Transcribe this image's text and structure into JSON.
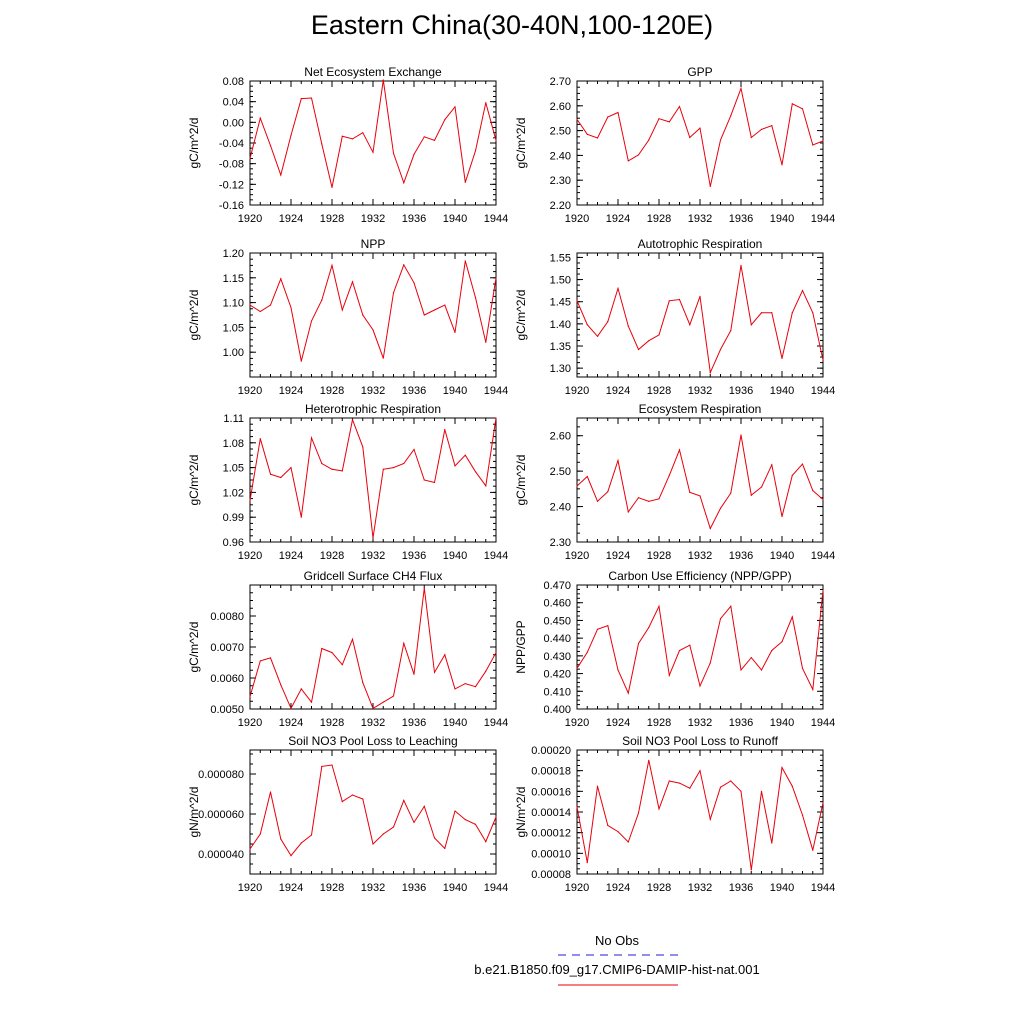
{
  "figure": {
    "title": "Eastern China(30-40N,100-120E)",
    "series_color": "#e8000b",
    "obs_color": "#1f1fd0"
  },
  "legend": {
    "obs_label": "No Obs",
    "model_label": "b.e21.B1850.f09_g17.CMIP6-DAMIP-hist-nat.001"
  },
  "chart_data": [
    {
      "type": "line",
      "title": "Net Ecosystem Exchange",
      "ylabel": "gC/m^2/d",
      "xlim": [
        1920,
        1944
      ],
      "ylim": [
        -0.16,
        0.08
      ],
      "yticks": [
        -0.16,
        -0.12,
        -0.08,
        -0.04,
        0.0,
        0.04,
        0.08
      ],
      "ytick_labels": [
        "-0.16",
        "-0.12",
        "-0.08",
        "-0.04",
        "0.00",
        "0.04",
        "0.08"
      ],
      "xticks": [
        1920,
        1924,
        1928,
        1932,
        1936,
        1940,
        1944
      ],
      "x": [
        1920,
        1921,
        1922,
        1923,
        1924,
        1925,
        1926,
        1927,
        1928,
        1929,
        1930,
        1931,
        1932,
        1933,
        1934,
        1935,
        1936,
        1937,
        1938,
        1939,
        1940,
        1941,
        1942,
        1943,
        1944
      ],
      "values": [
        -0.07,
        0.008,
        -0.045,
        -0.102,
        -0.025,
        0.046,
        0.047,
        -0.042,
        -0.126,
        -0.027,
        -0.032,
        -0.02,
        -0.058,
        0.082,
        -0.06,
        -0.117,
        -0.062,
        -0.028,
        -0.035,
        0.005,
        0.03,
        -0.116,
        -0.055,
        0.038,
        -0.035
      ]
    },
    {
      "type": "line",
      "title": "GPP",
      "ylabel": "gC/m^2/d",
      "xlim": [
        1920,
        1944
      ],
      "ylim": [
        2.2,
        2.7
      ],
      "yticks": [
        2.2,
        2.3,
        2.4,
        2.5,
        2.6,
        2.7
      ],
      "ytick_labels": [
        "2.20",
        "2.30",
        "2.40",
        "2.50",
        "2.60",
        "2.70"
      ],
      "xticks": [
        1920,
        1924,
        1928,
        1932,
        1936,
        1940,
        1944
      ],
      "x": [
        1920,
        1921,
        1922,
        1923,
        1924,
        1925,
        1926,
        1927,
        1928,
        1929,
        1930,
        1931,
        1932,
        1933,
        1934,
        1935,
        1936,
        1937,
        1938,
        1939,
        1940,
        1941,
        1942,
        1943,
        1944
      ],
      "values": [
        2.545,
        2.485,
        2.47,
        2.555,
        2.573,
        2.378,
        2.402,
        2.462,
        2.548,
        2.535,
        2.597,
        2.472,
        2.51,
        2.275,
        2.462,
        2.56,
        2.67,
        2.472,
        2.505,
        2.52,
        2.362,
        2.608,
        2.588,
        2.442,
        2.458
      ]
    },
    {
      "type": "line",
      "title": "NPP",
      "ylabel": "gC/m^2/d",
      "xlim": [
        1920,
        1944
      ],
      "ylim": [
        0.95,
        1.2
      ],
      "yticks": [
        1.0,
        1.05,
        1.1,
        1.15,
        1.2
      ],
      "ytick_labels": [
        "1.00",
        "1.05",
        "1.10",
        "1.15",
        "1.20"
      ],
      "xticks": [
        1920,
        1924,
        1928,
        1932,
        1936,
        1940,
        1944
      ],
      "x": [
        1920,
        1921,
        1922,
        1923,
        1924,
        1925,
        1926,
        1927,
        1928,
        1929,
        1930,
        1931,
        1932,
        1933,
        1934,
        1935,
        1936,
        1937,
        1938,
        1939,
        1940,
        1941,
        1942,
        1943,
        1944
      ],
      "values": [
        1.095,
        1.082,
        1.095,
        1.148,
        1.09,
        0.982,
        1.063,
        1.105,
        1.175,
        1.085,
        1.142,
        1.075,
        1.045,
        0.988,
        1.12,
        1.176,
        1.14,
        1.075,
        1.085,
        1.095,
        1.04,
        1.184,
        1.11,
        1.02,
        1.15
      ]
    },
    {
      "type": "line",
      "title": "Autotrophic Respiration",
      "ylabel": "gC/m^2/d",
      "xlim": [
        1920,
        1944
      ],
      "ylim": [
        1.28,
        1.56
      ],
      "yticks": [
        1.3,
        1.35,
        1.4,
        1.45,
        1.5,
        1.55
      ],
      "ytick_labels": [
        "1.30",
        "1.35",
        "1.40",
        "1.45",
        "1.50",
        "1.55"
      ],
      "xticks": [
        1920,
        1924,
        1928,
        1932,
        1936,
        1940,
        1944
      ],
      "x": [
        1920,
        1921,
        1922,
        1923,
        1924,
        1925,
        1926,
        1927,
        1928,
        1929,
        1930,
        1931,
        1932,
        1933,
        1934,
        1935,
        1936,
        1937,
        1938,
        1939,
        1940,
        1941,
        1942,
        1943,
        1944
      ],
      "values": [
        1.452,
        1.398,
        1.372,
        1.405,
        1.48,
        1.395,
        1.342,
        1.362,
        1.375,
        1.452,
        1.455,
        1.398,
        1.462,
        1.29,
        1.342,
        1.385,
        1.532,
        1.398,
        1.425,
        1.425,
        1.322,
        1.425,
        1.475,
        1.425,
        1.318
      ]
    },
    {
      "type": "line",
      "title": "Heterotrophic Respiration",
      "ylabel": "gC/m^2/d",
      "xlim": [
        1920,
        1944
      ],
      "ylim": [
        0.96,
        1.11
      ],
      "yticks": [
        0.96,
        0.99,
        1.02,
        1.05,
        1.08,
        1.11
      ],
      "ytick_labels": [
        "0.96",
        "0.99",
        "1.02",
        "1.05",
        "1.08",
        "1.11"
      ],
      "xticks": [
        1920,
        1924,
        1928,
        1932,
        1936,
        1940,
        1944
      ],
      "x": [
        1920,
        1921,
        1922,
        1923,
        1924,
        1925,
        1926,
        1927,
        1928,
        1929,
        1930,
        1931,
        1932,
        1933,
        1934,
        1935,
        1936,
        1937,
        1938,
        1939,
        1940,
        1941,
        1942,
        1943,
        1944
      ],
      "values": [
        1.01,
        1.085,
        1.042,
        1.038,
        1.05,
        0.99,
        1.086,
        1.055,
        1.048,
        1.046,
        1.108,
        1.075,
        0.965,
        1.048,
        1.05,
        1.055,
        1.072,
        1.035,
        1.032,
        1.096,
        1.052,
        1.065,
        1.045,
        1.028,
        1.11
      ]
    },
    {
      "type": "line",
      "title": "Ecosystem Respiration",
      "ylabel": "gC/m^2/d",
      "xlim": [
        1920,
        1944
      ],
      "ylim": [
        2.3,
        2.65
      ],
      "yticks": [
        2.3,
        2.4,
        2.5,
        2.6
      ],
      "ytick_labels": [
        "2.30",
        "2.40",
        "2.50",
        "2.60"
      ],
      "xticks": [
        1920,
        1924,
        1928,
        1932,
        1936,
        1940,
        1944
      ],
      "x": [
        1920,
        1921,
        1922,
        1923,
        1924,
        1925,
        1926,
        1927,
        1928,
        1929,
        1930,
        1931,
        1932,
        1933,
        1934,
        1935,
        1936,
        1937,
        1938,
        1939,
        1940,
        1941,
        1942,
        1943,
        1944
      ],
      "values": [
        2.458,
        2.485,
        2.415,
        2.442,
        2.53,
        2.385,
        2.425,
        2.415,
        2.422,
        2.488,
        2.56,
        2.44,
        2.43,
        2.338,
        2.395,
        2.438,
        2.602,
        2.432,
        2.455,
        2.518,
        2.372,
        2.488,
        2.52,
        2.445,
        2.42
      ]
    },
    {
      "type": "line",
      "title": "Gridcell Surface CH4 Flux",
      "ylabel": "gC/m^2/d",
      "xlim": [
        1920,
        1944
      ],
      "ylim": [
        0.005,
        0.009
      ],
      "yticks": [
        0.005,
        0.006,
        0.007,
        0.008
      ],
      "ytick_labels": [
        "0.0050",
        "0.0060",
        "0.0070",
        "0.0080"
      ],
      "xticks": [
        1920,
        1924,
        1928,
        1932,
        1936,
        1940,
        1944
      ],
      "x": [
        1920,
        1921,
        1922,
        1923,
        1924,
        1925,
        1926,
        1927,
        1928,
        1929,
        1930,
        1931,
        1932,
        1933,
        1934,
        1935,
        1936,
        1937,
        1938,
        1939,
        1940,
        1941,
        1942,
        1943,
        1944
      ],
      "values": [
        0.0054,
        0.00655,
        0.00665,
        0.00578,
        0.00502,
        0.00565,
        0.00522,
        0.00695,
        0.00682,
        0.00643,
        0.00725,
        0.00585,
        0.00502,
        0.00522,
        0.00542,
        0.00712,
        0.00612,
        0.0089,
        0.00618,
        0.00675,
        0.00565,
        0.00582,
        0.00572,
        0.00622,
        0.00682
      ]
    },
    {
      "type": "line",
      "title": "Carbon Use Efficiency (NPP/GPP)",
      "ylabel": "NPP/GPP",
      "xlim": [
        1920,
        1944
      ],
      "ylim": [
        0.4,
        0.47
      ],
      "yticks": [
        0.4,
        0.41,
        0.42,
        0.43,
        0.44,
        0.45,
        0.46,
        0.47
      ],
      "ytick_labels": [
        "0.400",
        "0.410",
        "0.420",
        "0.430",
        "0.440",
        "0.450",
        "0.460",
        "0.470"
      ],
      "xticks": [
        1920,
        1924,
        1928,
        1932,
        1936,
        1940,
        1944
      ],
      "x": [
        1920,
        1921,
        1922,
        1923,
        1924,
        1925,
        1926,
        1927,
        1928,
        1929,
        1930,
        1931,
        1932,
        1933,
        1934,
        1935,
        1936,
        1937,
        1938,
        1939,
        1940,
        1941,
        1942,
        1943,
        1944
      ],
      "values": [
        0.423,
        0.432,
        0.445,
        0.447,
        0.422,
        0.409,
        0.437,
        0.446,
        0.458,
        0.419,
        0.433,
        0.436,
        0.413,
        0.426,
        0.451,
        0.458,
        0.422,
        0.429,
        0.422,
        0.433,
        0.438,
        0.452,
        0.423,
        0.411,
        0.467
      ]
    },
    {
      "type": "line",
      "title": "Soil NO3 Pool Loss to Leaching",
      "ylabel": "gN/m^2/d",
      "xlim": [
        1920,
        1944
      ],
      "ylim": [
        3e-05,
        9.2e-05
      ],
      "yticks": [
        4e-05,
        6e-05,
        8e-05
      ],
      "ytick_labels": [
        "0.000040",
        "0.000060",
        "0.000080"
      ],
      "xticks": [
        1920,
        1924,
        1928,
        1932,
        1936,
        1940,
        1944
      ],
      "x": [
        1920,
        1921,
        1922,
        1923,
        1924,
        1925,
        1926,
        1927,
        1928,
        1929,
        1930,
        1931,
        1932,
        1933,
        1934,
        1935,
        1936,
        1937,
        1938,
        1939,
        1940,
        1941,
        1942,
        1943,
        1944
      ],
      "values": [
        4.25e-05,
        5e-05,
        7.1e-05,
        4.75e-05,
        3.92e-05,
        4.55e-05,
        4.95e-05,
        8.38e-05,
        8.45e-05,
        6.62e-05,
        6.95e-05,
        6.75e-05,
        4.5e-05,
        5e-05,
        5.35e-05,
        6.68e-05,
        5.58e-05,
        6.38e-05,
        4.8e-05,
        4.28e-05,
        6.15e-05,
        5.72e-05,
        5.48e-05,
        4.62e-05,
        5.85e-05
      ]
    },
    {
      "type": "line",
      "title": "Soil NO3 Pool Loss to Runoff",
      "ylabel": "gN/m^2/d",
      "xlim": [
        1920,
        1944
      ],
      "ylim": [
        8e-05,
        0.0002
      ],
      "yticks": [
        8e-05,
        0.0001,
        0.00012,
        0.00014,
        0.00016,
        0.00018,
        0.0002
      ],
      "ytick_labels": [
        "0.00008",
        "0.00010",
        "0.00012",
        "0.00014",
        "0.00016",
        "0.00018",
        "0.00020"
      ],
      "xticks": [
        1920,
        1924,
        1928,
        1932,
        1936,
        1940,
        1944
      ],
      "x": [
        1920,
        1921,
        1922,
        1923,
        1924,
        1925,
        1926,
        1927,
        1928,
        1929,
        1930,
        1931,
        1932,
        1933,
        1934,
        1935,
        1936,
        1937,
        1938,
        1939,
        1940,
        1941,
        1942,
        1943,
        1944
      ],
      "values": [
        0.000145,
        9.1e-05,
        0.000165,
        0.000127,
        0.000121,
        0.000111,
        0.000139,
        0.00019,
        0.000143,
        0.00017,
        0.000168,
        0.000163,
        0.00018,
        0.000133,
        0.000164,
        0.00017,
        0.00016,
        8.4e-05,
        0.00016,
        0.00011,
        0.000183,
        0.000165,
        0.000137,
        0.000103,
        0.000149
      ]
    }
  ]
}
